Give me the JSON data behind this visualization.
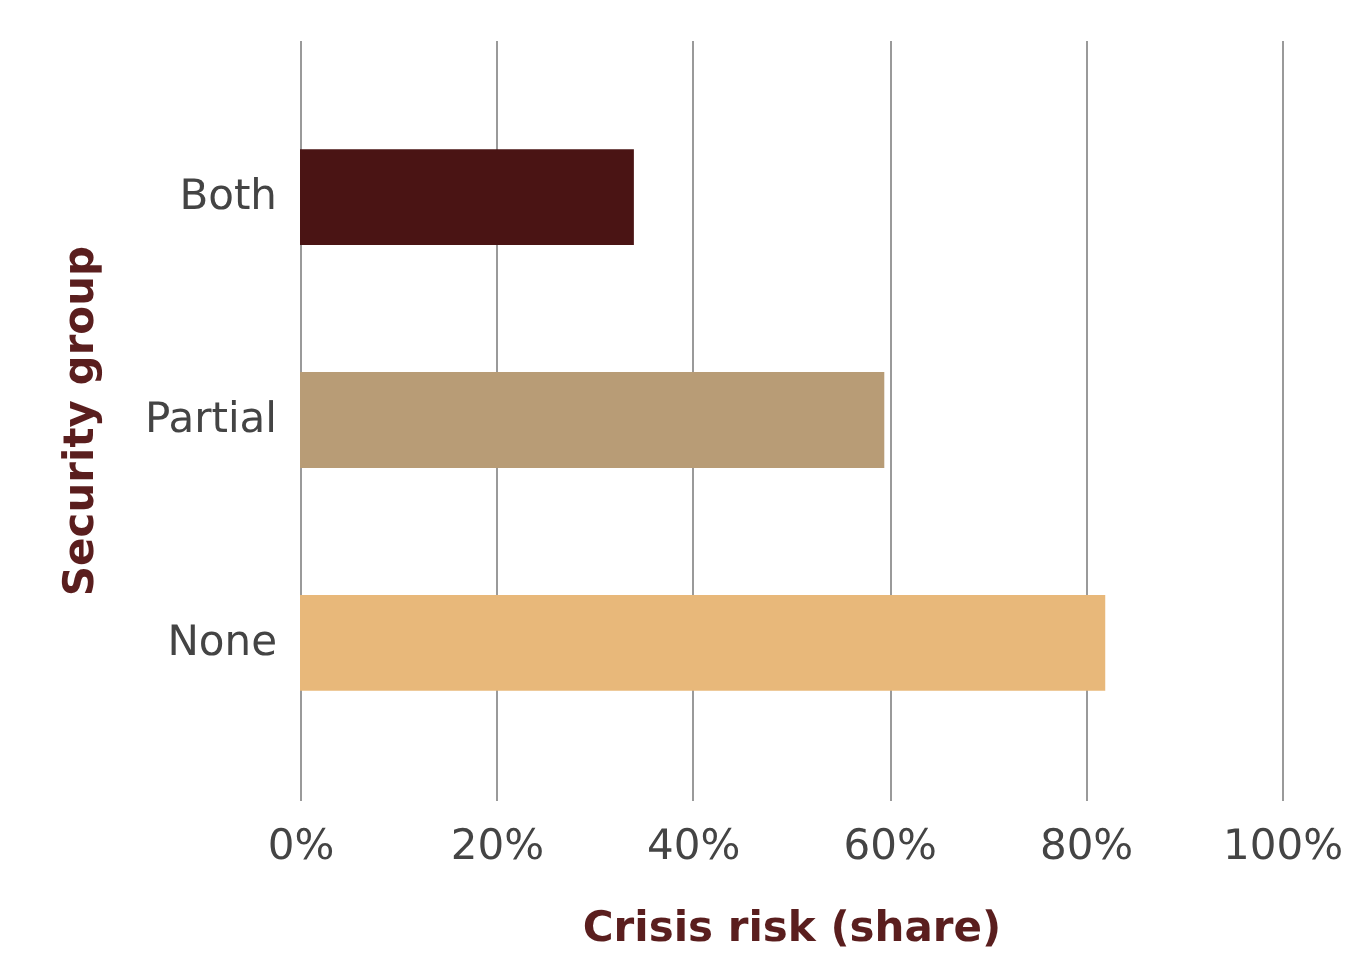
{
  "chart_data": {
    "type": "bar",
    "orientation": "horizontal",
    "xlabel": "Crisis risk (share)",
    "ylabel": "Security group",
    "categories": [
      "Both",
      "Partial",
      "None"
    ],
    "values": [
      34,
      59.5,
      82
    ],
    "colors": [
      "#4a1414",
      "#b89c76",
      "#e8b87a"
    ],
    "xlim": [
      0,
      100
    ],
    "xticks": [
      {
        "value": 0,
        "label": "0%"
      },
      {
        "value": 20,
        "label": "20%"
      },
      {
        "value": 40,
        "label": "40%"
      },
      {
        "value": 60,
        "label": "60%"
      },
      {
        "value": 80,
        "label": "80%"
      },
      {
        "value": 100,
        "label": "100%"
      }
    ],
    "grid": "x"
  }
}
